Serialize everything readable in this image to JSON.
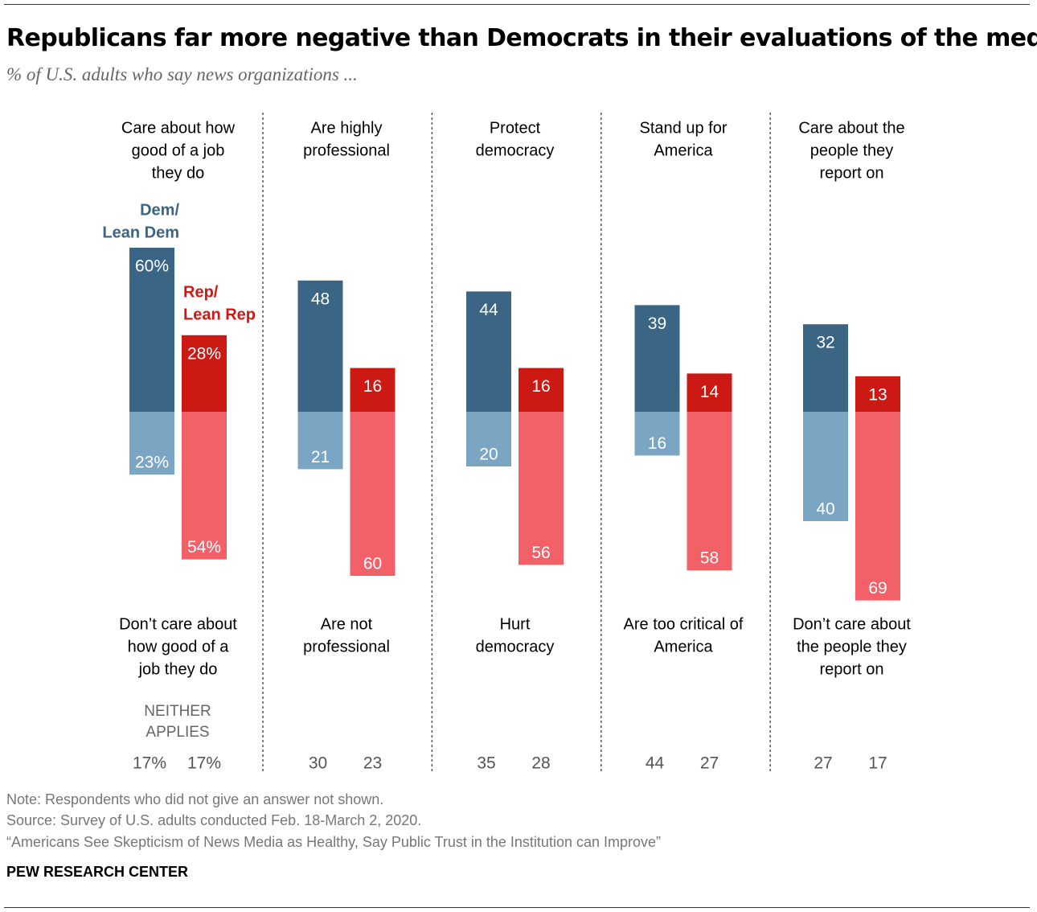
{
  "title": "Republicans far more negative than Democrats in their evaluations of the media",
  "subtitle": "% of U.S. adults who say news organizations ...",
  "footer": {
    "note": "Note: Respondents who did not give an answer not shown.",
    "source": "Source: Survey of U.S. adults conducted Feb. 18-March 2, 2020.",
    "report": "“Americans See Skepticism of News Media as Healthy, Say Public Trust in the Institution can Improve”",
    "brand": "PEW RESEARCH CENTER"
  },
  "chart_data": {
    "type": "bar",
    "subtype": "diverging",
    "legend": {
      "dem": "Dem/ Lean Dem",
      "rep": "Rep/ Lean Rep"
    },
    "neither_label": "NEITHER APPLIES",
    "colors": {
      "dem_positive": "#3b6585",
      "dem_negative": "#7aa6c4",
      "rep_positive": "#cc1914",
      "rep_negative": "#f26168"
    },
    "categories": [
      {
        "positive": "Care about how good of a job they do",
        "negative": "Don’t care about how good of a job they do",
        "dem": {
          "positive": 60,
          "negative": 23,
          "neither": 17
        },
        "rep": {
          "positive": 28,
          "negative": 54,
          "neither": 17
        },
        "percent": true
      },
      {
        "positive": "Are highly professional",
        "negative": "Are not professional",
        "dem": {
          "positive": 48,
          "negative": 21,
          "neither": 30
        },
        "rep": {
          "positive": 16,
          "negative": 60,
          "neither": 23
        }
      },
      {
        "positive": "Protect democracy",
        "negative": "Hurt democracy",
        "dem": {
          "positive": 44,
          "negative": 20,
          "neither": 35
        },
        "rep": {
          "positive": 16,
          "negative": 56,
          "neither": 28
        }
      },
      {
        "positive": "Stand up for America",
        "negative": "Are too critical of America",
        "dem": {
          "positive": 39,
          "negative": 16,
          "neither": 44
        },
        "rep": {
          "positive": 14,
          "negative": 58,
          "neither": 27
        }
      },
      {
        "positive": "Care about the people they report on",
        "negative": "Don’t care about the people they report on",
        "dem": {
          "positive": 32,
          "negative": 40,
          "neither": 27
        },
        "rep": {
          "positive": 13,
          "negative": 69,
          "neither": 17
        }
      }
    ]
  }
}
